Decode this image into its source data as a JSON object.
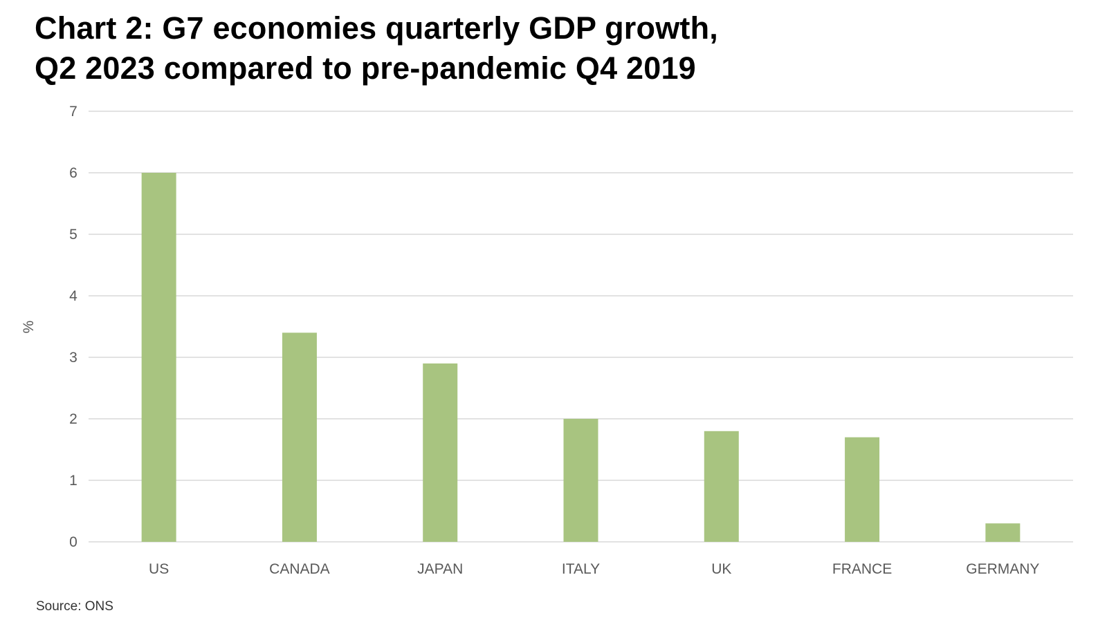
{
  "chart_data": {
    "type": "bar",
    "title_lines": [
      "Chart 2: G7 economies quarterly GDP growth,",
      "Q2 2023 compared to pre-pandemic Q4 2019"
    ],
    "title": "Chart 2: G7 economies quarterly GDP growth, Q2 2023 compared to pre-pandemic Q4 2019",
    "categories": [
      "US",
      "CANADA",
      "JAPAN",
      "ITALY",
      "UK",
      "FRANCE",
      "GERMANY"
    ],
    "values": [
      6.0,
      3.4,
      2.9,
      2.0,
      1.8,
      1.7,
      0.3
    ],
    "xlabel": "",
    "ylabel": "%",
    "ylim": [
      0,
      7
    ],
    "yticks": [
      "0",
      "1",
      "2",
      "3",
      "4",
      "5",
      "6",
      "7"
    ],
    "grid": true,
    "legend": "none",
    "bar_color": "#a8c480",
    "source": "Source: ONS"
  }
}
